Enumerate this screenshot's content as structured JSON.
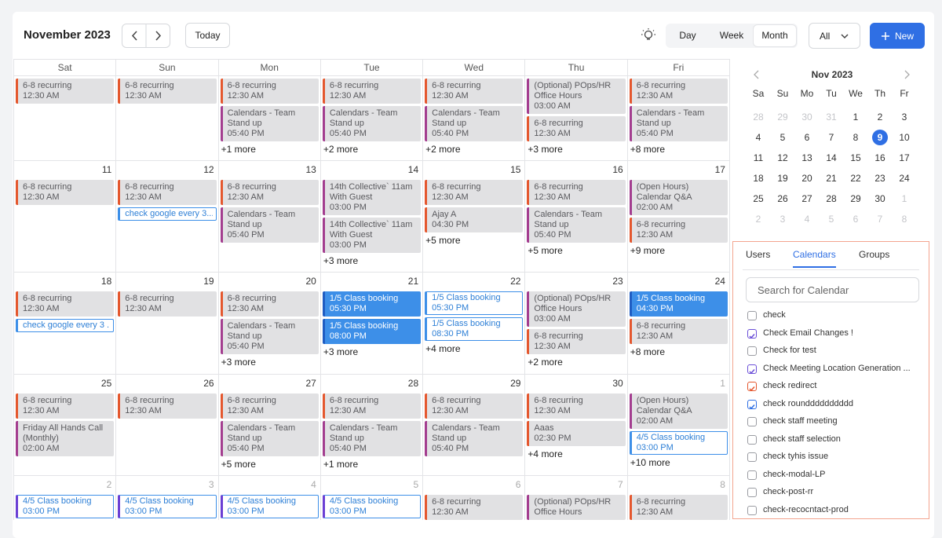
{
  "header": {
    "title": "November 2023",
    "today": "Today",
    "views": [
      "Day",
      "Week",
      "Month"
    ],
    "active_view": 2,
    "filter": "All",
    "new_button": "New"
  },
  "calendar": {
    "weekdays": [
      "Sat",
      "Sun",
      "Mon",
      "Tue",
      "Wed",
      "Thu",
      "Fri"
    ],
    "weeks": [
      {
        "days": [
          {
            "events": [
              {
                "title": "6-8 recurring",
                "time": "12:30 AM",
                "color": "#e4572e",
                "style": "gray"
              }
            ]
          },
          {
            "events": [
              {
                "title": "6-8 recurring",
                "time": "12:30 AM",
                "color": "#e4572e",
                "style": "gray"
              }
            ]
          },
          {
            "events": [
              {
                "title": "6-8 recurring",
                "time": "12:30 AM",
                "color": "#e4572e",
                "style": "gray"
              },
              {
                "title": "Calendars - Team Stand up",
                "time": "05:40 PM",
                "color": "#a33d8f",
                "style": "gray"
              }
            ],
            "more": "+1 more"
          },
          {
            "events": [
              {
                "title": "6-8 recurring",
                "time": "12:30 AM",
                "color": "#e4572e",
                "style": "gray"
              },
              {
                "title": "Calendars - Team Stand up",
                "time": "05:40 PM",
                "color": "#a33d8f",
                "style": "gray"
              }
            ],
            "more": "+2 more"
          },
          {
            "events": [
              {
                "title": "6-8 recurring",
                "time": "12:30 AM",
                "color": "#e4572e",
                "style": "gray"
              },
              {
                "title": "Calendars - Team Stand up",
                "time": "05:40 PM",
                "color": "#a33d8f",
                "style": "gray"
              }
            ],
            "more": "+2 more"
          },
          {
            "events": [
              {
                "title": "(Optional) POps/HR Office Hours",
                "time": "03:00 AM",
                "color": "#a33d8f",
                "style": "gray"
              },
              {
                "title": "6-8 recurring",
                "time": "12:30 AM",
                "color": "#e4572e",
                "style": "gray"
              }
            ],
            "more": "+3 more"
          },
          {
            "events": [
              {
                "title": "6-8 recurring",
                "time": "12:30 AM",
                "color": "#e4572e",
                "style": "gray"
              },
              {
                "title": "Calendars - Team Stand up",
                "time": "05:40 PM",
                "color": "#a33d8f",
                "style": "gray"
              }
            ],
            "more": "+8 more"
          }
        ]
      },
      {
        "days": [
          {
            "date": 11,
            "events": [
              {
                "title": "6-8 recurring",
                "time": "12:30 AM",
                "color": "#e4572e",
                "style": "gray"
              }
            ]
          },
          {
            "date": 12,
            "events": [
              {
                "title": "6-8 recurring",
                "time": "12:30 AM",
                "color": "#e4572e",
                "style": "gray"
              },
              {
                "title": "check google every 3...",
                "color": "#3d8fe8",
                "style": "outline"
              }
            ]
          },
          {
            "date": 13,
            "events": [
              {
                "title": "6-8 recurring",
                "time": "12:30 AM",
                "color": "#e4572e",
                "style": "gray"
              },
              {
                "title": "Calendars - Team Stand up",
                "time": "05:40 PM",
                "color": "#a33d8f",
                "style": "gray"
              }
            ]
          },
          {
            "date": 14,
            "events": [
              {
                "title": "14th Collective` 11am With Guest",
                "time": "03:00 PM",
                "color": "#a33d8f",
                "style": "gray"
              },
              {
                "title": "14th Collective` 11am With Guest",
                "time": "03:00 PM",
                "color": "#a33d8f",
                "style": "gray"
              }
            ],
            "more": "+3 more"
          },
          {
            "date": 15,
            "events": [
              {
                "title": "6-8 recurring",
                "time": "12:30 AM",
                "color": "#e4572e",
                "style": "gray"
              },
              {
                "title": "Ajay A",
                "time": "04:30 PM",
                "color": "#e4572e",
                "style": "gray"
              }
            ],
            "more": "+5 more"
          },
          {
            "date": 16,
            "events": [
              {
                "title": "6-8 recurring",
                "time": "12:30 AM",
                "color": "#e4572e",
                "style": "gray"
              },
              {
                "title": "Calendars - Team Stand up",
                "time": "05:40 PM",
                "color": "#a33d8f",
                "style": "gray"
              }
            ],
            "more": "+5 more"
          },
          {
            "date": 17,
            "events": [
              {
                "title": "(Open Hours) Calendar Q&A",
                "time": "02:00 AM",
                "color": "#a33d8f",
                "style": "gray"
              },
              {
                "title": "6-8 recurring",
                "time": "12:30 AM",
                "color": "#e4572e",
                "style": "gray"
              }
            ],
            "more": "+9 more"
          }
        ]
      },
      {
        "days": [
          {
            "date": 18,
            "events": [
              {
                "title": "6-8 recurring",
                "time": "12:30 AM",
                "color": "#e4572e",
                "style": "gray"
              },
              {
                "title": "check google every 3 ...",
                "color": "#3d8fe8",
                "style": "outline"
              }
            ]
          },
          {
            "date": 19,
            "events": [
              {
                "title": "6-8 recurring",
                "time": "12:30 AM",
                "color": "#e4572e",
                "style": "gray"
              }
            ]
          },
          {
            "date": 20,
            "events": [
              {
                "title": "6-8 recurring",
                "time": "12:30 AM",
                "color": "#e4572e",
                "style": "gray"
              },
              {
                "title": "Calendars - Team Stand up",
                "time": "05:40 PM",
                "color": "#a33d8f",
                "style": "gray"
              }
            ],
            "more": "+3 more"
          },
          {
            "date": 21,
            "events": [
              {
                "title": "1/5 Class booking",
                "time": "05:30 PM",
                "color": "#1f5cc2",
                "style": "filled"
              },
              {
                "title": "1/5 Class booking",
                "time": "08:00 PM",
                "color": "#1f5cc2",
                "style": "filled"
              }
            ],
            "more": "+3 more"
          },
          {
            "date": 22,
            "events": [
              {
                "title": "1/5 Class booking",
                "time": "05:30 PM",
                "color": "#3d8fe8",
                "style": "outline"
              },
              {
                "title": "1/5 Class booking",
                "time": "08:30 PM",
                "color": "#3d8fe8",
                "style": "outline"
              }
            ],
            "more": "+4 more"
          },
          {
            "date": 23,
            "events": [
              {
                "title": "(Optional) POps/HR Office Hours",
                "time": "03:00 AM",
                "color": "#a33d8f",
                "style": "gray"
              },
              {
                "title": "6-8 recurring",
                "time": "12:30 AM",
                "color": "#e4572e",
                "style": "gray"
              }
            ],
            "more": "+2 more"
          },
          {
            "date": 24,
            "events": [
              {
                "title": "1/5 Class booking",
                "time": "04:30 PM",
                "color": "#1f5cc2",
                "style": "filled"
              },
              {
                "title": "6-8 recurring",
                "time": "12:30 AM",
                "color": "#e4572e",
                "style": "gray"
              }
            ],
            "more": "+8 more"
          }
        ]
      },
      {
        "days": [
          {
            "date": 25,
            "events": [
              {
                "title": "6-8 recurring",
                "time": "12:30 AM",
                "color": "#e4572e",
                "style": "gray"
              },
              {
                "title": "Friday All Hands Call (Monthly)",
                "time": "02:00 AM",
                "color": "#a33d8f",
                "style": "gray"
              }
            ]
          },
          {
            "date": 26,
            "events": [
              {
                "title": "6-8 recurring",
                "time": "12:30 AM",
                "color": "#e4572e",
                "style": "gray"
              }
            ]
          },
          {
            "date": 27,
            "events": [
              {
                "title": "6-8 recurring",
                "time": "12:30 AM",
                "color": "#e4572e",
                "style": "gray"
              },
              {
                "title": "Calendars - Team Stand up",
                "time": "05:40 PM",
                "color": "#a33d8f",
                "style": "gray"
              }
            ],
            "more": "+5 more"
          },
          {
            "date": 28,
            "events": [
              {
                "title": "6-8 recurring",
                "time": "12:30 AM",
                "color": "#e4572e",
                "style": "gray"
              },
              {
                "title": "Calendars - Team Stand up",
                "time": "05:40 PM",
                "color": "#a33d8f",
                "style": "gray"
              }
            ],
            "more": "+1 more"
          },
          {
            "date": 29,
            "events": [
              {
                "title": "6-8 recurring",
                "time": "12:30 AM",
                "color": "#e4572e",
                "style": "gray"
              },
              {
                "title": "Calendars - Team Stand up",
                "time": "05:40 PM",
                "color": "#a33d8f",
                "style": "gray"
              }
            ]
          },
          {
            "date": 30,
            "events": [
              {
                "title": "6-8 recurring",
                "time": "12:30 AM",
                "color": "#e4572e",
                "style": "gray"
              },
              {
                "title": "Aaas",
                "time": "02:30 PM",
                "color": "#e4572e",
                "style": "gray"
              }
            ],
            "more": "+4 more"
          },
          {
            "date": 1,
            "muted": true,
            "events": [
              {
                "title": "(Open Hours) Calendar Q&A",
                "time": "02:00 AM",
                "color": "#a33d8f",
                "style": "gray"
              },
              {
                "title": "4/5 Class booking",
                "time": "03:00 PM",
                "color": "#3d8fe8",
                "style": "outline"
              }
            ],
            "more": "+10 more"
          }
        ]
      },
      {
        "days": [
          {
            "date": 2,
            "muted": true,
            "events": [
              {
                "title": "4/5 Class booking",
                "time": "03:00 PM",
                "color": "#6b3fd4",
                "style": "outline"
              }
            ]
          },
          {
            "date": 3,
            "muted": true,
            "events": [
              {
                "title": "4/5 Class booking",
                "time": "03:00 PM",
                "color": "#6b3fd4",
                "style": "outline"
              }
            ]
          },
          {
            "date": 4,
            "muted": true,
            "events": [
              {
                "title": "4/5 Class booking",
                "time": "03:00 PM",
                "color": "#6b3fd4",
                "style": "outline"
              }
            ]
          },
          {
            "date": 5,
            "muted": true,
            "events": [
              {
                "title": "4/5 Class booking",
                "time": "03:00 PM",
                "color": "#6b3fd4",
                "style": "outline"
              }
            ]
          },
          {
            "date": 6,
            "muted": true,
            "events": [
              {
                "title": "6-8 recurring",
                "time": "12:30 AM",
                "color": "#e4572e",
                "style": "gray"
              }
            ]
          },
          {
            "date": 7,
            "muted": true,
            "events": [
              {
                "title": "(Optional) POps/HR Office Hours",
                "color": "#a33d8f",
                "style": "gray"
              }
            ]
          },
          {
            "date": 8,
            "muted": true,
            "events": [
              {
                "title": "6-8 recurring",
                "time": "12:30 AM",
                "color": "#e4572e",
                "style": "gray"
              }
            ]
          }
        ]
      }
    ]
  },
  "mini_calendar": {
    "title": "Nov 2023",
    "weekdays": [
      "Sa",
      "Su",
      "Mo",
      "Tu",
      "We",
      "Th",
      "Fr"
    ],
    "weeks": [
      [
        {
          "day": 28,
          "muted": true
        },
        {
          "day": 29,
          "muted": true
        },
        {
          "day": 30,
          "muted": true
        },
        {
          "day": 31,
          "muted": true
        },
        {
          "day": 1
        },
        {
          "day": 2
        },
        {
          "day": 3
        }
      ],
      [
        {
          "day": 4
        },
        {
          "day": 5
        },
        {
          "day": 6
        },
        {
          "day": 7
        },
        {
          "day": 8
        },
        {
          "day": 9,
          "selected": true
        },
        {
          "day": 10
        }
      ],
      [
        {
          "day": 11
        },
        {
          "day": 12
        },
        {
          "day": 13
        },
        {
          "day": 14
        },
        {
          "day": 15
        },
        {
          "day": 16
        },
        {
          "day": 17
        }
      ],
      [
        {
          "day": 18
        },
        {
          "day": 19
        },
        {
          "day": 20
        },
        {
          "day": 21
        },
        {
          "day": 22
        },
        {
          "day": 23
        },
        {
          "day": 24
        }
      ],
      [
        {
          "day": 25
        },
        {
          "day": 26
        },
        {
          "day": 27
        },
        {
          "day": 28
        },
        {
          "day": 29
        },
        {
          "day": 30
        },
        {
          "day": 1,
          "muted": true
        }
      ],
      [
        {
          "day": 2,
          "muted": true
        },
        {
          "day": 3,
          "muted": true
        },
        {
          "day": 4,
          "muted": true
        },
        {
          "day": 5,
          "muted": true
        },
        {
          "day": 6,
          "muted": true
        },
        {
          "day": 7,
          "muted": true
        },
        {
          "day": 8,
          "muted": true
        }
      ]
    ]
  },
  "sidebar": {
    "tabs": [
      "Users",
      "Calendars",
      "Groups"
    ],
    "active_tab": 1,
    "search_placeholder": "Search for Calendar",
    "calendars": [
      {
        "name": "check",
        "checked": false
      },
      {
        "name": "Check Email Changes !",
        "checked": true,
        "color": "#6b4fd8"
      },
      {
        "name": "Check for test",
        "checked": false
      },
      {
        "name": "Check Meeting Location Generation ...",
        "checked": true,
        "color": "#6b4fd8"
      },
      {
        "name": "check redirect",
        "checked": true,
        "color": "#e4572e"
      },
      {
        "name": "check roundddddddddd",
        "checked": true,
        "color": "#2f6fe4"
      },
      {
        "name": "check staff meeting",
        "checked": false
      },
      {
        "name": "check staff selection",
        "checked": false
      },
      {
        "name": "check tyhis issue",
        "checked": false
      },
      {
        "name": "check-modal-LP",
        "checked": false
      },
      {
        "name": "check-post-rr",
        "checked": false
      },
      {
        "name": "check-recocntact-prod",
        "checked": false
      }
    ]
  }
}
